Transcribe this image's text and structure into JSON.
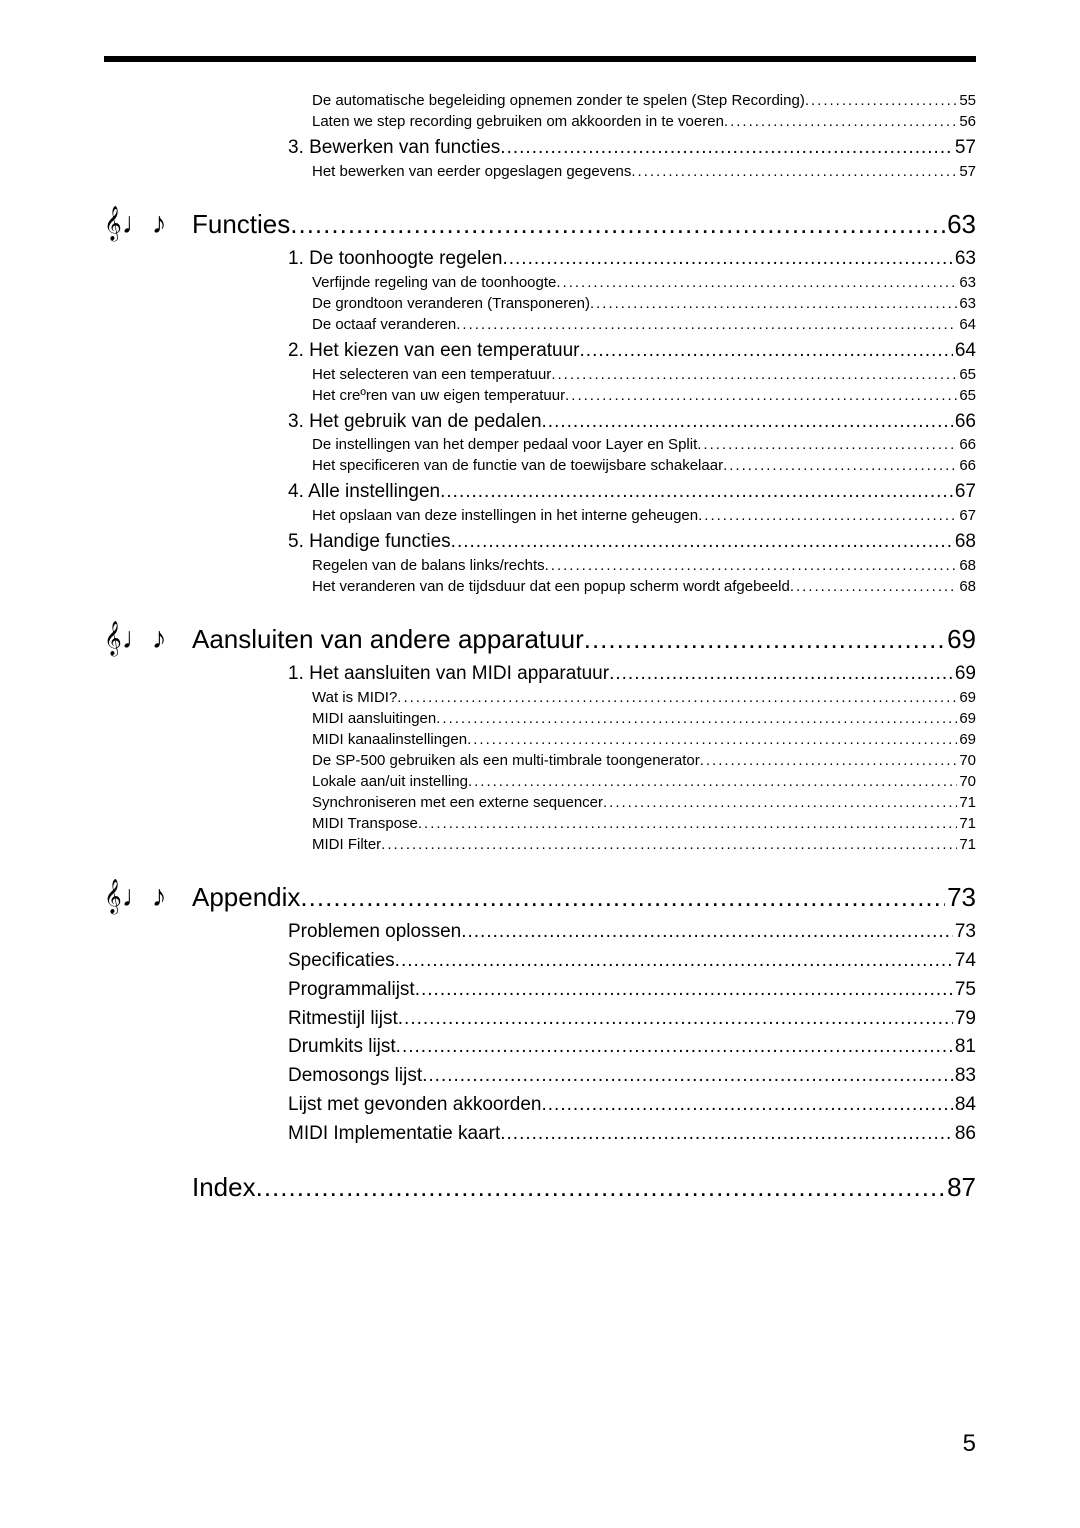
{
  "page_number": "5",
  "icon_glyph": "𝄞♩♪",
  "preface_subs": [
    {
      "text": "De automatische begeleiding opnemen zonder te spelen (Step Recording)",
      "pg": "55"
    },
    {
      "text": "Laten we step recording gebruiken om akkoorden in te voeren",
      "pg": "56"
    }
  ],
  "preface_entry": {
    "num": "3.",
    "text": "Bewerken van functies",
    "pg": "57",
    "subs": [
      {
        "text": "Het bewerken van eerder opgeslagen gegevens",
        "pg": "57"
      }
    ]
  },
  "chapters": [
    {
      "title": "Functies",
      "pg": "63",
      "entries": [
        {
          "num": "1.",
          "text": "De toonhoogte regelen",
          "pg": "63",
          "subs": [
            {
              "text": "Verfijnde regeling van de toonhoogte",
              "pg": "63"
            },
            {
              "text": "De grondtoon veranderen (Transponeren)",
              "pg": "63"
            },
            {
              "text": "De octaaf veranderen",
              "pg": "64"
            }
          ]
        },
        {
          "num": "2.",
          "text": "Het kiezen van een temperatuur",
          "pg": "64",
          "subs": [
            {
              "text": "Het selecteren van een temperatuur",
              "pg": "65"
            },
            {
              "text": "Het creºren van uw eigen temperatuur",
              "pg": "65"
            }
          ]
        },
        {
          "num": "3.",
          "text": "Het gebruik van de pedalen",
          "pg": "66",
          "subs": [
            {
              "text": "De instellingen van het demper pedaal voor Layer en Split",
              "pg": "66"
            },
            {
              "text": "Het specificeren van de functie van de toewijsbare schakelaar",
              "pg": "66"
            }
          ]
        },
        {
          "num": "4.",
          "text": "Alle instellingen",
          "pg": "67",
          "subs": [
            {
              "text": "Het opslaan van deze instellingen in het interne geheugen",
              "pg": "67"
            }
          ]
        },
        {
          "num": "5.",
          "text": "Handige functies",
          "pg": "68",
          "subs": [
            {
              "text": "Regelen van de balans links/rechts",
              "pg": "68"
            },
            {
              "text": "Het veranderen van de tijdsduur dat een popup scherm wordt afgebeeld",
              "pg": "68"
            }
          ]
        }
      ]
    },
    {
      "title": "Aansluiten van andere apparatuur",
      "pg": "69",
      "entries": [
        {
          "num": "1.",
          "text": "Het aansluiten van MIDI apparatuur",
          "pg": "69",
          "subs": [
            {
              "text": "Wat is MIDI?",
              "pg": "69"
            },
            {
              "text": "MIDI aansluitingen",
              "pg": "69"
            },
            {
              "text": "MIDI kanaalinstellingen",
              "pg": "69"
            },
            {
              "text": "De SP-500 gebruiken als een multi-timbrale toongenerator",
              "pg": "70"
            },
            {
              "text": "Lokale aan/uit instelling",
              "pg": "70"
            },
            {
              "text": "Synchroniseren met een externe sequencer",
              "pg": "71"
            },
            {
              "text": "MIDI Transpose",
              "pg": "71"
            },
            {
              "text": "MIDI Filter",
              "pg": "71"
            }
          ]
        }
      ]
    },
    {
      "title": "Appendix",
      "pg": "73",
      "entries": [
        {
          "num": "",
          "text": "Problemen oplossen",
          "pg": "73",
          "subs": []
        },
        {
          "num": "",
          "text": "Specificaties",
          "pg": "74",
          "subs": []
        },
        {
          "num": "",
          "text": "Programmalijst",
          "pg": "75",
          "subs": []
        },
        {
          "num": "",
          "text": "Ritmestijl lijst",
          "pg": "79",
          "subs": []
        },
        {
          "num": "",
          "text": "Drumkits lijst",
          "pg": "81",
          "subs": []
        },
        {
          "num": "",
          "text": "Demosongs lijst",
          "pg": "83",
          "subs": []
        },
        {
          "num": "",
          "text": "Lijst met gevonden akkoorden",
          "pg": "84",
          "subs": []
        },
        {
          "num": "",
          "text": "MIDI Implementatie kaart",
          "pg": "86",
          "subs": []
        }
      ]
    }
  ],
  "index": {
    "title": "Index",
    "pg": "87"
  }
}
